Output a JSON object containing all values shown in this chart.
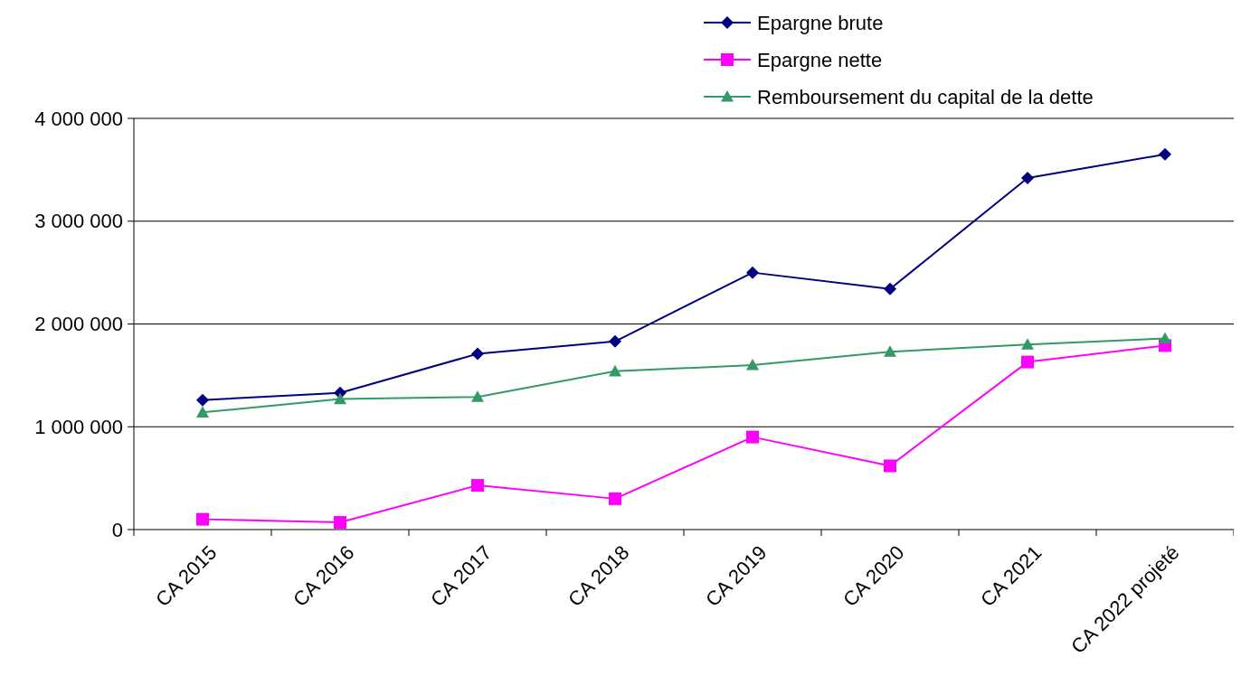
{
  "chart_data": {
    "type": "line",
    "categories": [
      "CA 2015",
      "CA 2016",
      "CA 2017",
      "CA 2018",
      "CA 2019",
      "CA 2020",
      "CA 2021",
      "CA 2022 projeté"
    ],
    "series": [
      {
        "name": "Epargne brute",
        "color": "#000080",
        "marker": "diamond",
        "values": [
          1260000,
          1330000,
          1710000,
          1830000,
          2500000,
          2340000,
          3420000,
          3650000
        ]
      },
      {
        "name": "Epargne nette",
        "color": "#ff00ff",
        "marker": "square",
        "values": [
          100000,
          70000,
          430000,
          300000,
          900000,
          620000,
          1630000,
          1790000
        ]
      },
      {
        "name": "Remboursement du capital de la dette",
        "color": "#339966",
        "marker": "triangle",
        "values": [
          1140000,
          1270000,
          1290000,
          1540000,
          1600000,
          1730000,
          1800000,
          1860000
        ]
      }
    ],
    "ylim": [
      0,
      4000000
    ],
    "yticks": [
      {
        "value": 0,
        "label": "0"
      },
      {
        "value": 1000000,
        "label": "1 000 000"
      },
      {
        "value": 2000000,
        "label": "2 000 000"
      },
      {
        "value": 3000000,
        "label": "3 000 000"
      },
      {
        "value": 4000000,
        "label": "4 000 000"
      }
    ],
    "grid": "y",
    "legend": "top right"
  }
}
